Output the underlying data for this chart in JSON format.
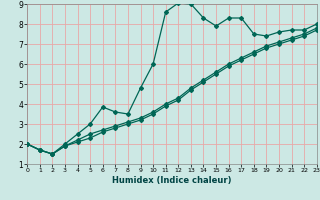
{
  "xlabel": "Humidex (Indice chaleur)",
  "bg_color": "#cce8e4",
  "grid_color": "#e8a8a8",
  "line_color": "#006655",
  "xlim": [
    0,
    23
  ],
  "ylim": [
    1,
    9
  ],
  "xticks": [
    0,
    1,
    2,
    3,
    4,
    5,
    6,
    7,
    8,
    9,
    10,
    11,
    12,
    13,
    14,
    15,
    16,
    17,
    18,
    19,
    20,
    21,
    22,
    23
  ],
  "yticks": [
    1,
    2,
    3,
    4,
    5,
    6,
    7,
    8,
    9
  ],
  "line1_x": [
    0,
    1,
    2,
    3,
    4,
    5,
    6,
    7,
    8,
    9,
    10,
    11,
    12,
    13,
    14,
    15,
    16,
    17,
    18,
    19,
    20,
    21,
    22,
    23
  ],
  "line1_y": [
    2.0,
    1.7,
    1.5,
    2.0,
    2.5,
    3.0,
    3.85,
    3.6,
    3.5,
    4.8,
    6.0,
    8.6,
    9.05,
    9.0,
    8.3,
    7.9,
    8.3,
    8.3,
    7.5,
    7.4,
    7.6,
    7.7,
    7.7,
    8.0
  ],
  "line2_x": [
    0,
    1,
    2,
    3,
    4,
    5,
    6,
    7,
    8,
    9,
    10,
    11,
    12,
    13,
    14,
    15,
    16,
    17,
    18,
    19,
    20,
    21,
    22,
    23
  ],
  "line2_y": [
    2.0,
    1.7,
    1.5,
    1.9,
    2.2,
    2.5,
    2.7,
    2.9,
    3.1,
    3.3,
    3.6,
    4.0,
    4.3,
    4.8,
    5.2,
    5.6,
    6.0,
    6.3,
    6.6,
    6.9,
    7.1,
    7.3,
    7.5,
    7.8
  ],
  "line3_x": [
    0,
    1,
    2,
    3,
    4,
    5,
    6,
    7,
    8,
    9,
    10,
    11,
    12,
    13,
    14,
    15,
    16,
    17,
    18,
    19,
    20,
    21,
    22,
    23
  ],
  "line3_y": [
    2.0,
    1.7,
    1.5,
    1.9,
    2.1,
    2.3,
    2.6,
    2.8,
    3.0,
    3.2,
    3.5,
    3.9,
    4.2,
    4.7,
    5.1,
    5.5,
    5.9,
    6.2,
    6.5,
    6.8,
    7.0,
    7.2,
    7.4,
    7.7
  ]
}
